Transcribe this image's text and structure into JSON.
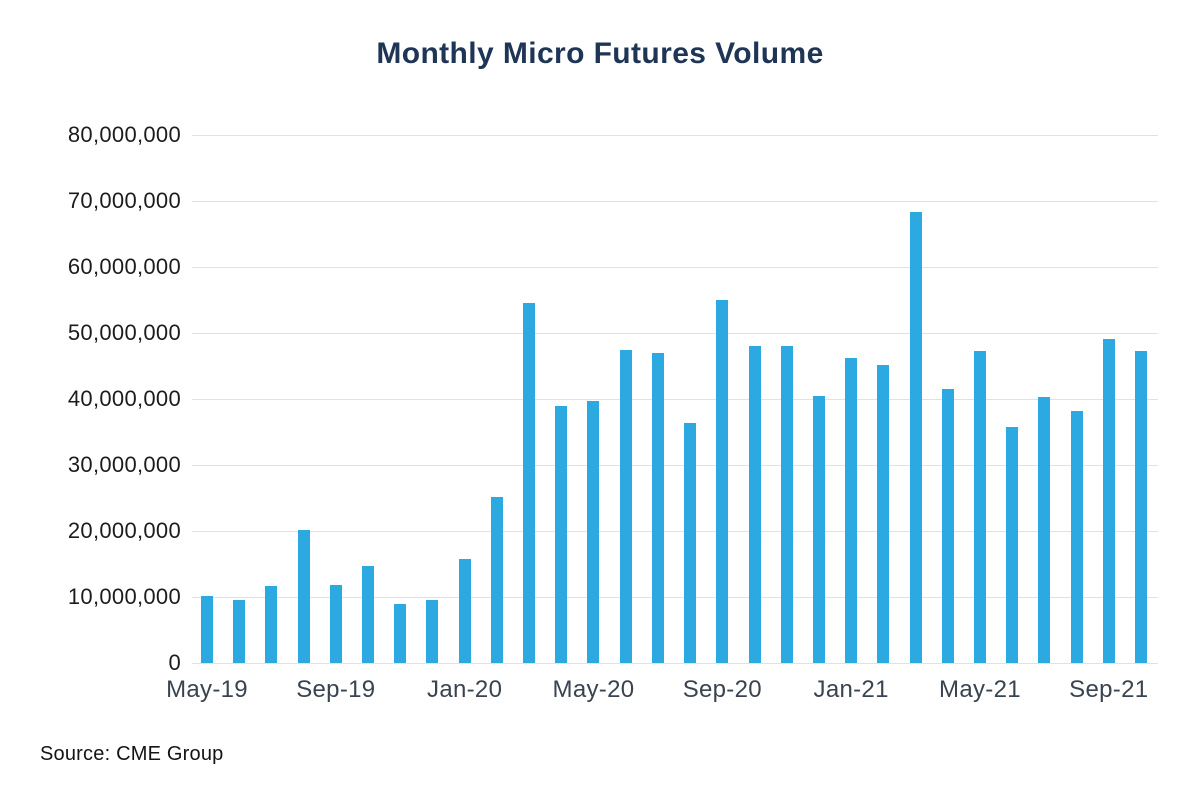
{
  "title": "Monthly Micro Futures Volume",
  "source": "Source: CME Group",
  "colors": {
    "bar": "#2ca9e0",
    "grid": "#e2e2e2",
    "title_text": "#1f3555",
    "y_axis_text": "#1c1c1c",
    "x_axis_text": "#3a4450"
  },
  "chart_data": {
    "type": "bar",
    "title": "Monthly Micro Futures Volume",
    "xlabel": "",
    "ylabel": "",
    "ylim": [
      0,
      80000000
    ],
    "grid": "horizontal",
    "legend": "none",
    "source": "Source: CME Group",
    "categories": [
      "May-19",
      "Jun-19",
      "Jul-19",
      "Aug-19",
      "Sep-19",
      "Oct-19",
      "Nov-19",
      "Dec-19",
      "Jan-20",
      "Feb-20",
      "Mar-20",
      "Apr-20",
      "May-20",
      "Jun-20",
      "Jul-20",
      "Aug-20",
      "Sep-20",
      "Oct-20",
      "Nov-20",
      "Dec-20",
      "Jan-21",
      "Feb-21",
      "Mar-21",
      "Apr-21",
      "May-21",
      "Jun-21",
      "Jul-21",
      "Aug-21",
      "Sep-21",
      "Oct-21"
    ],
    "values": [
      10200000,
      9600000,
      11700000,
      20200000,
      11800000,
      14700000,
      8900000,
      9600000,
      15700000,
      25100000,
      54500000,
      39000000,
      39700000,
      47400000,
      46900000,
      36400000,
      55000000,
      48100000,
      48100000,
      40400000,
      46200000,
      45200000,
      68400000,
      41500000,
      47200000,
      35700000,
      40300000,
      38200000,
      49100000,
      47300000
    ],
    "y_ticks": [
      0,
      10000000,
      20000000,
      30000000,
      40000000,
      50000000,
      60000000,
      70000000,
      80000000
    ],
    "y_tick_labels": [
      "0",
      "10,000,000",
      "20,000,000",
      "30,000,000",
      "40,000,000",
      "50,000,000",
      "60,000,000",
      "70,000,000",
      "80,000,000"
    ],
    "x_tick_labels": [
      "May-19",
      "Sep-19",
      "Jan-20",
      "May-20",
      "Sep-20",
      "Jan-21",
      "May-21",
      "Sep-21"
    ]
  }
}
